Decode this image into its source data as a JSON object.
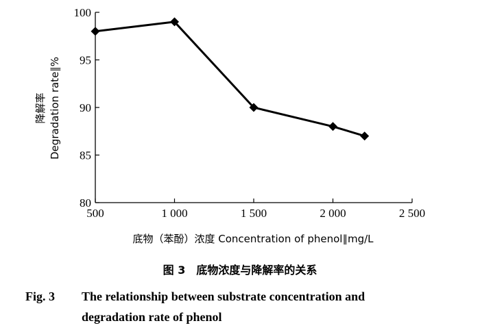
{
  "chart_data": {
    "type": "line",
    "x": [
      500,
      1000,
      1500,
      2000,
      2200
    ],
    "series": [
      {
        "values": [
          98,
          99,
          90,
          88,
          87
        ],
        "marker": "diamond",
        "color": "#000000"
      }
    ],
    "xlim": [
      500,
      2500
    ],
    "ylim": [
      80,
      100
    ],
    "xticks": [
      "500",
      "1 000",
      "1 500",
      "2 000",
      "2 500"
    ],
    "yticks": [
      "80",
      "85",
      "90",
      "95",
      "100"
    ],
    "xlabel": "底物（苯酚）浓度 Concentration of phenol∥mg/L",
    "ylabel_cn": "降解率",
    "ylabel_en": "Degradation rate∥%",
    "grid": false
  },
  "caption": {
    "cn": "图 3　底物浓度与降解率的关系",
    "en_label": "Fig. 3",
    "en_line1": "The relationship between substrate concentration and",
    "en_line2": "degradation rate of phenol"
  }
}
